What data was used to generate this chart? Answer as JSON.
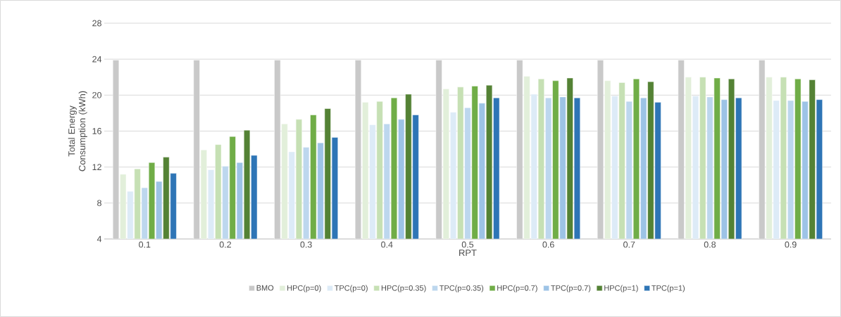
{
  "chart_data": {
    "type": "bar",
    "xlabel": "RPT",
    "ylabel": "Total Energy Consumption (kWh)",
    "categories": [
      "0.1",
      "0.2",
      "0.3",
      "0.4",
      "0.5",
      "0.6",
      "0.7",
      "0.8",
      "0.9"
    ],
    "series": [
      {
        "name": "BMO",
        "color": "#c9c9c9",
        "values": [
          23.9,
          23.9,
          23.9,
          23.9,
          23.9,
          23.9,
          23.9,
          23.9,
          23.9
        ]
      },
      {
        "name": "HPC(p=0)",
        "color": "#e2efda",
        "values": [
          11.2,
          13.9,
          16.8,
          19.2,
          20.7,
          22.1,
          21.6,
          22.0,
          22.0
        ]
      },
      {
        "name": "TPC(p=0)",
        "color": "#ddebf7",
        "values": [
          9.3,
          11.7,
          13.7,
          16.7,
          18.1,
          20.1,
          19.9,
          19.9,
          19.4
        ]
      },
      {
        "name": "HPC(p=0.35)",
        "color": "#c6e0b4",
        "values": [
          11.8,
          14.5,
          17.3,
          19.3,
          20.9,
          21.8,
          21.4,
          22.0,
          22.0
        ]
      },
      {
        "name": "TPC(p=0.35)",
        "color": "#bdd7ee",
        "values": [
          9.7,
          12.1,
          14.2,
          16.8,
          18.6,
          19.7,
          19.3,
          19.8,
          19.4
        ]
      },
      {
        "name": "HPC(p=0.7)",
        "color": "#70ad47",
        "values": [
          12.5,
          15.4,
          17.8,
          19.7,
          21.0,
          21.6,
          21.8,
          21.9,
          21.8
        ]
      },
      {
        "name": "TPC(p=0.7)",
        "color": "#9dc3e6",
        "values": [
          10.4,
          12.5,
          14.7,
          17.3,
          19.1,
          19.8,
          19.7,
          19.5,
          19.3
        ]
      },
      {
        "name": "HPC(p=1)",
        "color": "#548235",
        "values": [
          13.1,
          16.1,
          18.5,
          20.1,
          21.1,
          21.9,
          21.5,
          21.8,
          21.7
        ]
      },
      {
        "name": "TPC(p=1)",
        "color": "#2e75b6",
        "values": [
          11.3,
          13.3,
          15.3,
          17.8,
          19.7,
          19.7,
          19.2,
          19.7,
          19.5
        ]
      }
    ],
    "ylim": [
      4,
      28
    ],
    "yticks": [
      4,
      8,
      12,
      16,
      20,
      24,
      28
    ],
    "grid": "y",
    "legend": "bottom"
  }
}
